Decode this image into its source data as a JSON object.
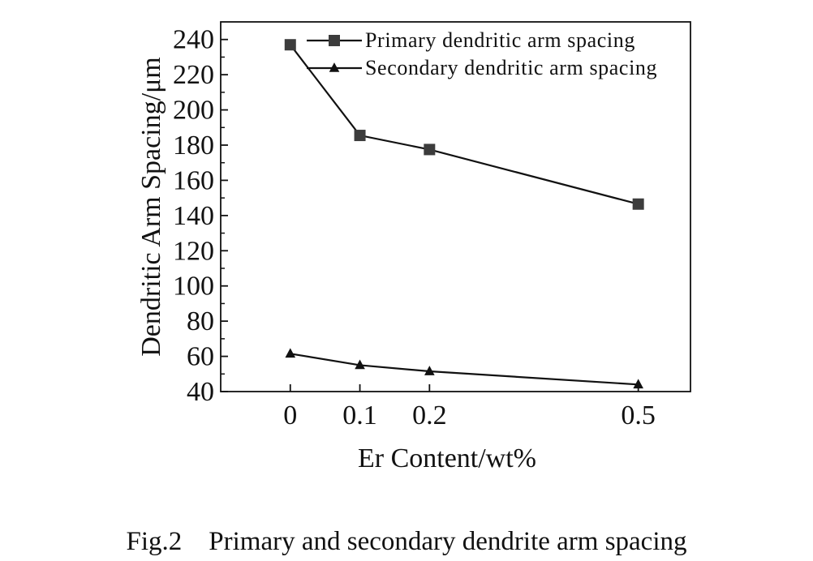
{
  "chart_data": {
    "type": "line",
    "x": [
      0,
      0.1,
      0.2,
      0.5
    ],
    "xticks": [
      "0",
      "0.1",
      "0.2",
      "0.5"
    ],
    "xlim": [
      -0.1,
      0.575
    ],
    "xlabel": "Er Content/wt%",
    "ylabel": "Dendritic Arm Spacing/μm",
    "ylim": [
      40,
      250
    ],
    "yticks": [
      40,
      60,
      80,
      100,
      120,
      140,
      160,
      180,
      200,
      220,
      240
    ],
    "grid": false,
    "legend_position": "top-right",
    "series": [
      {
        "name": "Primary dendritic arm spacing",
        "marker": "square",
        "color": "#3c3c3c",
        "values": [
          237,
          185.5,
          177.5,
          146.5
        ]
      },
      {
        "name": "Secondary dendritic arm spacing",
        "marker": "triangle",
        "color": "#111111",
        "values": [
          61.5,
          55,
          51.5,
          44
        ]
      }
    ]
  },
  "caption": {
    "fig_num": "Fig.2",
    "text": "Primary and secondary dendrite arm spacing"
  }
}
